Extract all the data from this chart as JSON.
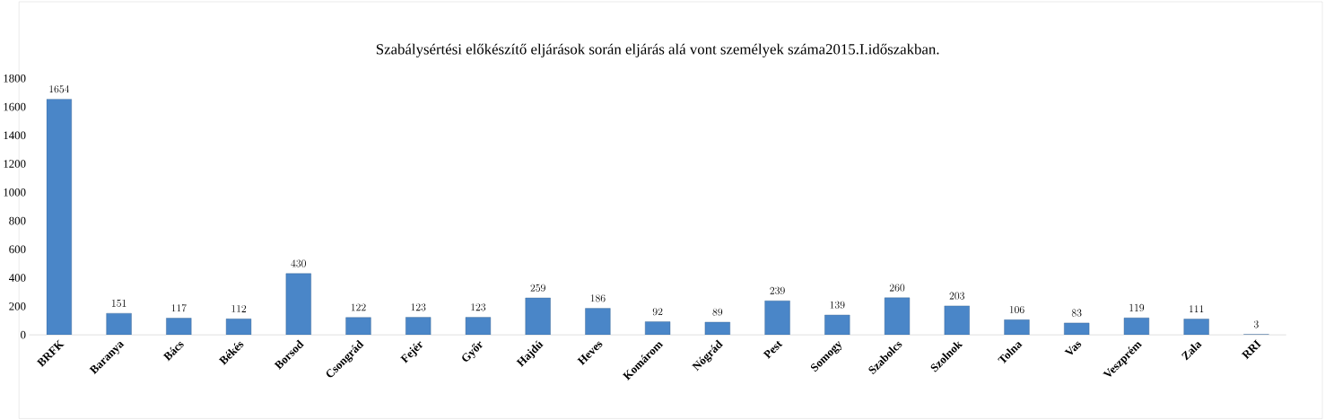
{
  "chart_data": {
    "type": "bar",
    "title": "Szabálysértési előkészítő eljárások során eljárás alá vont személyek száma2015.I.időszakban.",
    "categories": [
      "BRFK",
      "Baranya",
      "Bács",
      "Békés",
      "Borsod",
      "Csongrád",
      "Fejér",
      "Győr",
      "Hajdú",
      "Heves",
      "Komárom",
      "Nógrád",
      "Pest",
      "Somogy",
      "Szabolcs",
      "Szolnok",
      "Tolna",
      "Vas",
      "Veszprém",
      "Zala",
      "RRI"
    ],
    "values": [
      1654,
      151,
      117,
      112,
      430,
      122,
      123,
      123,
      259,
      186,
      92,
      89,
      239,
      139,
      260,
      203,
      106,
      83,
      119,
      111,
      3
    ],
    "color": "#4a86c8",
    "ylim": [
      0,
      1800
    ],
    "yticks": [
      0,
      200,
      400,
      600,
      800,
      1000,
      1200,
      1400,
      1600,
      1800
    ],
    "data_labels": true
  }
}
